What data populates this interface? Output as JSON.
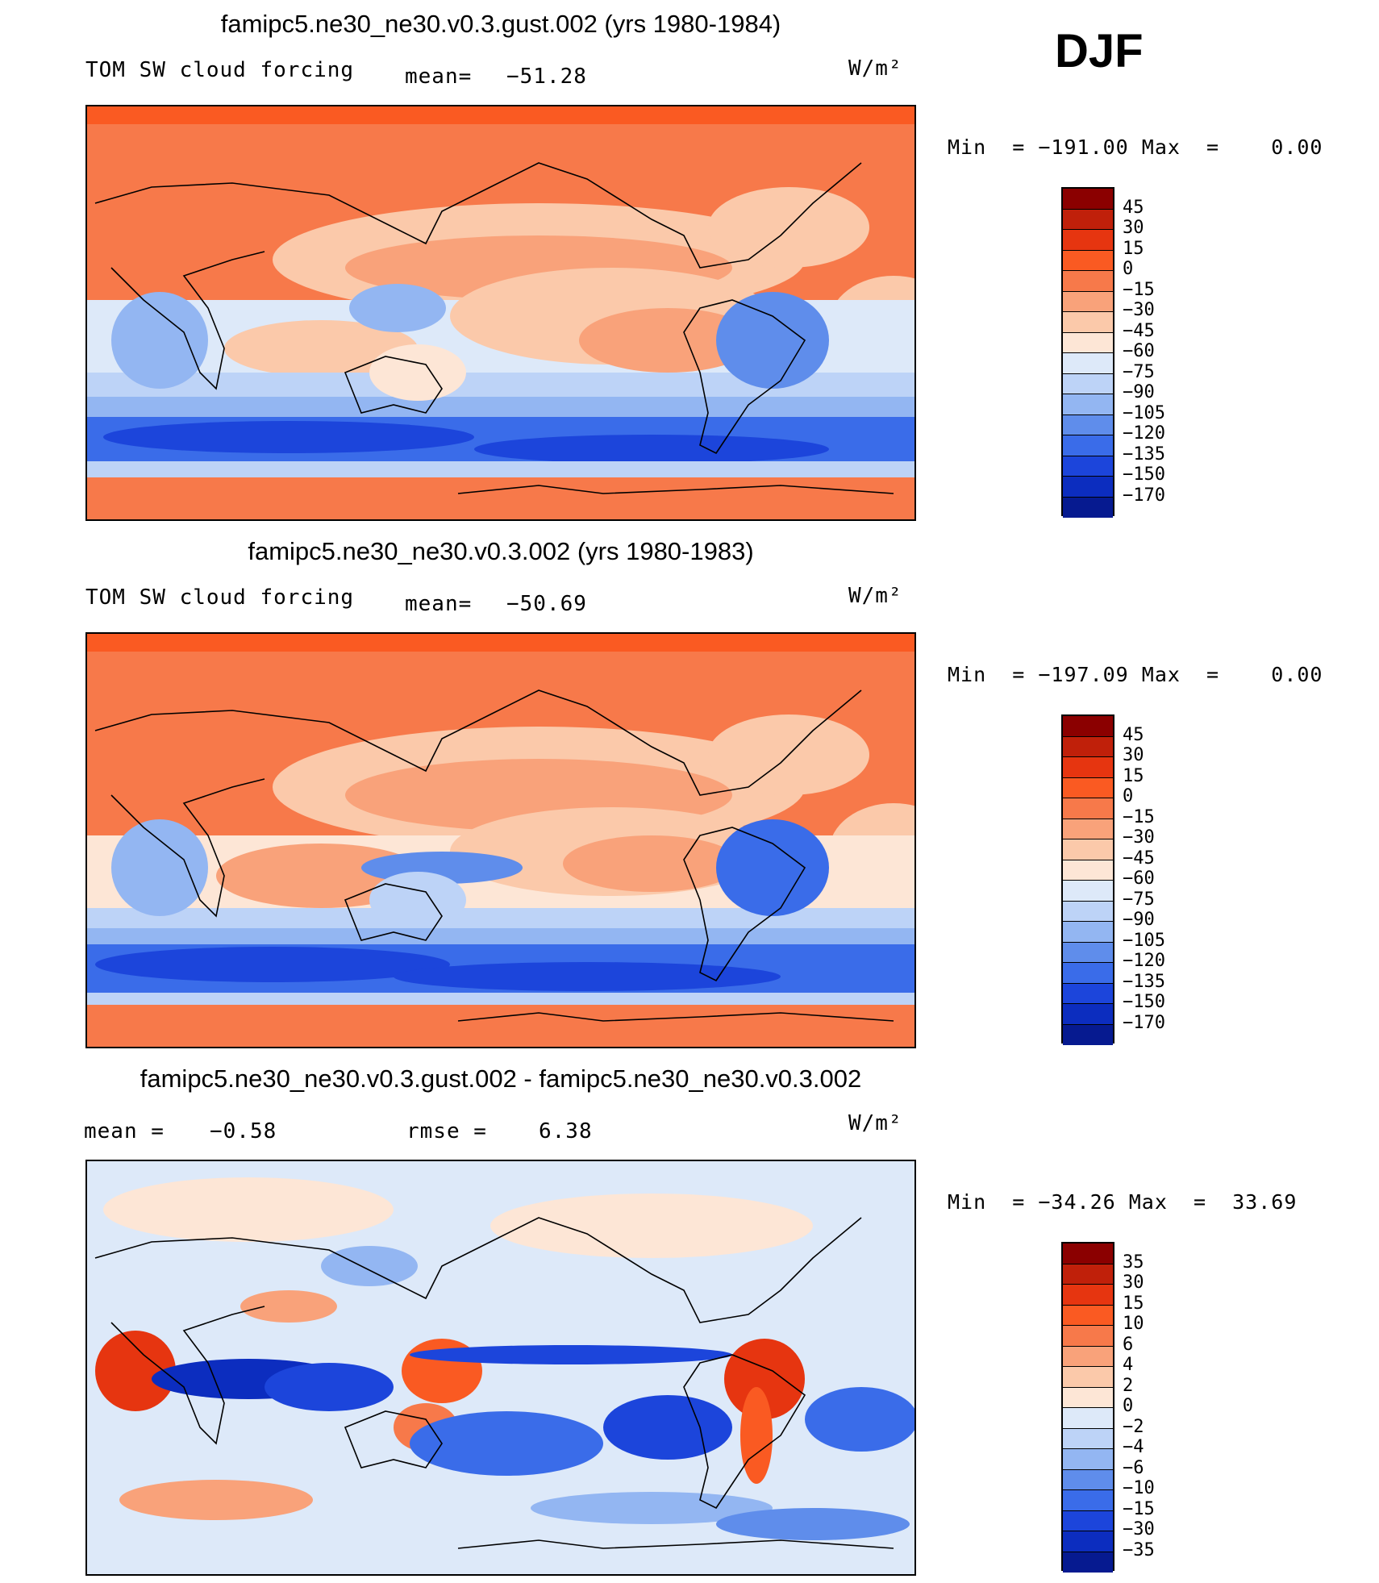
{
  "season": "DJF",
  "panels": [
    {
      "title": "famipc5.ne30_ne30.v0.3.gust.002 (yrs 1980-1984)",
      "variable": "TOM SW cloud forcing",
      "stat1_label": "mean=",
      "stat1_value": "−51.28",
      "units": "W/m²",
      "min_max": "Min  = −191.00 Max  =    0.00",
      "colorbar": {
        "labels": [
          "45",
          "30",
          "15",
          "0",
          "−15",
          "−30",
          "−45",
          "−60",
          "−75",
          "−90",
          "−105",
          "−120",
          "−135",
          "−150",
          "−170"
        ],
        "colors": [
          "#8b0000",
          "#c0200a",
          "#e63510",
          "#fa5a22",
          "#f7794a",
          "#f9a27a",
          "#fbc9aa",
          "#fde6d6",
          "#dde9f9",
          "#bdd3f7",
          "#93b6f2",
          "#5f8deb",
          "#3a6ce9",
          "#1c45db",
          "#0c2dbf",
          "#061a90"
        ]
      }
    },
    {
      "title": "famipc5.ne30_ne30.v0.3.002 (yrs 1980-1983)",
      "variable": "TOM SW cloud forcing",
      "stat1_label": "mean=",
      "stat1_value": "−50.69",
      "units": "W/m²",
      "min_max": "Min  = −197.09 Max  =    0.00",
      "colorbar": {
        "labels": [
          "45",
          "30",
          "15",
          "0",
          "−15",
          "−30",
          "−45",
          "−60",
          "−75",
          "−90",
          "−105",
          "−120",
          "−135",
          "−150",
          "−170"
        ],
        "colors": [
          "#8b0000",
          "#c0200a",
          "#e63510",
          "#fa5a22",
          "#f7794a",
          "#f9a27a",
          "#fbc9aa",
          "#fde6d6",
          "#dde9f9",
          "#bdd3f7",
          "#93b6f2",
          "#5f8deb",
          "#3a6ce9",
          "#1c45db",
          "#0c2dbf",
          "#061a90"
        ]
      }
    },
    {
      "title": "famipc5.ne30_ne30.v0.3.gust.002 - famipc5.ne30_ne30.v0.3.002",
      "stat1_label": "mean  =",
      "stat1_value": "−0.58",
      "stat2_label": "rmse  =",
      "stat2_value": "6.38",
      "units": "W/m²",
      "min_max": "Min  = −34.26 Max  =  33.69",
      "colorbar": {
        "labels": [
          "35",
          "30",
          "15",
          "10",
          "6",
          "4",
          "2",
          "0",
          "−2",
          "−4",
          "−6",
          "−10",
          "−15",
          "−30",
          "−35"
        ],
        "colors": [
          "#8b0000",
          "#c0200a",
          "#e63510",
          "#fa5a22",
          "#f7794a",
          "#f9a27a",
          "#fbc9aa",
          "#fde6d6",
          "#dde9f9",
          "#bdd3f7",
          "#93b6f2",
          "#5f8deb",
          "#3a6ce9",
          "#1c45db",
          "#0c2dbf",
          "#061a90"
        ]
      }
    }
  ]
}
